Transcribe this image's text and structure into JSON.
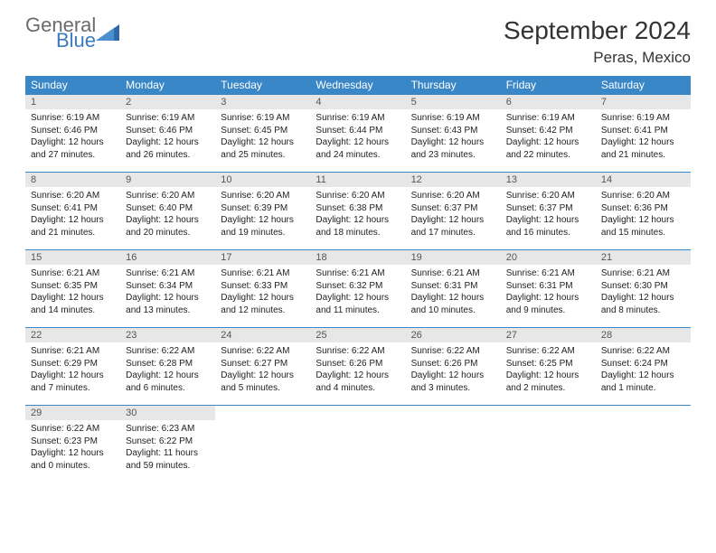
{
  "brand": {
    "line1": "General",
    "line2": "Blue"
  },
  "title": "September 2024",
  "location": "Peras, Mexico",
  "colors": {
    "header_bg": "#3a87c8",
    "header_text": "#ffffff",
    "daynum_bg": "#e7e7e7",
    "border": "#3a87c8",
    "logo_gray": "#6a6a6a",
    "logo_blue": "#3a7bbf"
  },
  "dow": [
    "Sunday",
    "Monday",
    "Tuesday",
    "Wednesday",
    "Thursday",
    "Friday",
    "Saturday"
  ],
  "weeks": [
    [
      {
        "n": "1",
        "sr": "Sunrise: 6:19 AM",
        "ss": "Sunset: 6:46 PM",
        "d1": "Daylight: 12 hours",
        "d2": "and 27 minutes."
      },
      {
        "n": "2",
        "sr": "Sunrise: 6:19 AM",
        "ss": "Sunset: 6:46 PM",
        "d1": "Daylight: 12 hours",
        "d2": "and 26 minutes."
      },
      {
        "n": "3",
        "sr": "Sunrise: 6:19 AM",
        "ss": "Sunset: 6:45 PM",
        "d1": "Daylight: 12 hours",
        "d2": "and 25 minutes."
      },
      {
        "n": "4",
        "sr": "Sunrise: 6:19 AM",
        "ss": "Sunset: 6:44 PM",
        "d1": "Daylight: 12 hours",
        "d2": "and 24 minutes."
      },
      {
        "n": "5",
        "sr": "Sunrise: 6:19 AM",
        "ss": "Sunset: 6:43 PM",
        "d1": "Daylight: 12 hours",
        "d2": "and 23 minutes."
      },
      {
        "n": "6",
        "sr": "Sunrise: 6:19 AM",
        "ss": "Sunset: 6:42 PM",
        "d1": "Daylight: 12 hours",
        "d2": "and 22 minutes."
      },
      {
        "n": "7",
        "sr": "Sunrise: 6:19 AM",
        "ss": "Sunset: 6:41 PM",
        "d1": "Daylight: 12 hours",
        "d2": "and 21 minutes."
      }
    ],
    [
      {
        "n": "8",
        "sr": "Sunrise: 6:20 AM",
        "ss": "Sunset: 6:41 PM",
        "d1": "Daylight: 12 hours",
        "d2": "and 21 minutes."
      },
      {
        "n": "9",
        "sr": "Sunrise: 6:20 AM",
        "ss": "Sunset: 6:40 PM",
        "d1": "Daylight: 12 hours",
        "d2": "and 20 minutes."
      },
      {
        "n": "10",
        "sr": "Sunrise: 6:20 AM",
        "ss": "Sunset: 6:39 PM",
        "d1": "Daylight: 12 hours",
        "d2": "and 19 minutes."
      },
      {
        "n": "11",
        "sr": "Sunrise: 6:20 AM",
        "ss": "Sunset: 6:38 PM",
        "d1": "Daylight: 12 hours",
        "d2": "and 18 minutes."
      },
      {
        "n": "12",
        "sr": "Sunrise: 6:20 AM",
        "ss": "Sunset: 6:37 PM",
        "d1": "Daylight: 12 hours",
        "d2": "and 17 minutes."
      },
      {
        "n": "13",
        "sr": "Sunrise: 6:20 AM",
        "ss": "Sunset: 6:37 PM",
        "d1": "Daylight: 12 hours",
        "d2": "and 16 minutes."
      },
      {
        "n": "14",
        "sr": "Sunrise: 6:20 AM",
        "ss": "Sunset: 6:36 PM",
        "d1": "Daylight: 12 hours",
        "d2": "and 15 minutes."
      }
    ],
    [
      {
        "n": "15",
        "sr": "Sunrise: 6:21 AM",
        "ss": "Sunset: 6:35 PM",
        "d1": "Daylight: 12 hours",
        "d2": "and 14 minutes."
      },
      {
        "n": "16",
        "sr": "Sunrise: 6:21 AM",
        "ss": "Sunset: 6:34 PM",
        "d1": "Daylight: 12 hours",
        "d2": "and 13 minutes."
      },
      {
        "n": "17",
        "sr": "Sunrise: 6:21 AM",
        "ss": "Sunset: 6:33 PM",
        "d1": "Daylight: 12 hours",
        "d2": "and 12 minutes."
      },
      {
        "n": "18",
        "sr": "Sunrise: 6:21 AM",
        "ss": "Sunset: 6:32 PM",
        "d1": "Daylight: 12 hours",
        "d2": "and 11 minutes."
      },
      {
        "n": "19",
        "sr": "Sunrise: 6:21 AM",
        "ss": "Sunset: 6:31 PM",
        "d1": "Daylight: 12 hours",
        "d2": "and 10 minutes."
      },
      {
        "n": "20",
        "sr": "Sunrise: 6:21 AM",
        "ss": "Sunset: 6:31 PM",
        "d1": "Daylight: 12 hours",
        "d2": "and 9 minutes."
      },
      {
        "n": "21",
        "sr": "Sunrise: 6:21 AM",
        "ss": "Sunset: 6:30 PM",
        "d1": "Daylight: 12 hours",
        "d2": "and 8 minutes."
      }
    ],
    [
      {
        "n": "22",
        "sr": "Sunrise: 6:21 AM",
        "ss": "Sunset: 6:29 PM",
        "d1": "Daylight: 12 hours",
        "d2": "and 7 minutes."
      },
      {
        "n": "23",
        "sr": "Sunrise: 6:22 AM",
        "ss": "Sunset: 6:28 PM",
        "d1": "Daylight: 12 hours",
        "d2": "and 6 minutes."
      },
      {
        "n": "24",
        "sr": "Sunrise: 6:22 AM",
        "ss": "Sunset: 6:27 PM",
        "d1": "Daylight: 12 hours",
        "d2": "and 5 minutes."
      },
      {
        "n": "25",
        "sr": "Sunrise: 6:22 AM",
        "ss": "Sunset: 6:26 PM",
        "d1": "Daylight: 12 hours",
        "d2": "and 4 minutes."
      },
      {
        "n": "26",
        "sr": "Sunrise: 6:22 AM",
        "ss": "Sunset: 6:26 PM",
        "d1": "Daylight: 12 hours",
        "d2": "and 3 minutes."
      },
      {
        "n": "27",
        "sr": "Sunrise: 6:22 AM",
        "ss": "Sunset: 6:25 PM",
        "d1": "Daylight: 12 hours",
        "d2": "and 2 minutes."
      },
      {
        "n": "28",
        "sr": "Sunrise: 6:22 AM",
        "ss": "Sunset: 6:24 PM",
        "d1": "Daylight: 12 hours",
        "d2": "and 1 minute."
      }
    ],
    [
      {
        "n": "29",
        "sr": "Sunrise: 6:22 AM",
        "ss": "Sunset: 6:23 PM",
        "d1": "Daylight: 12 hours",
        "d2": "and 0 minutes."
      },
      {
        "n": "30",
        "sr": "Sunrise: 6:23 AM",
        "ss": "Sunset: 6:22 PM",
        "d1": "Daylight: 11 hours",
        "d2": "and 59 minutes."
      },
      {
        "empty": true
      },
      {
        "empty": true
      },
      {
        "empty": true
      },
      {
        "empty": true
      },
      {
        "empty": true
      }
    ]
  ]
}
